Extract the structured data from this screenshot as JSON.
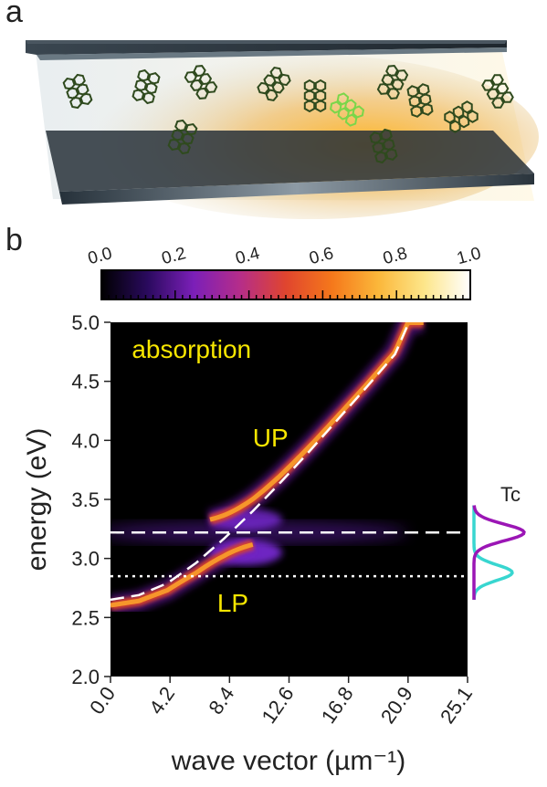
{
  "panels": {
    "a": "a",
    "b": "b"
  },
  "colorbar": {
    "ticks": [
      "0.0",
      "0.2",
      "0.4",
      "0.6",
      "0.8",
      "1.0"
    ],
    "range": [
      0,
      1
    ],
    "colormap": [
      "#000000",
      "#2a0a5e",
      "#7b1fb8",
      "#b52d8a",
      "#e0452e",
      "#f5781b",
      "#fbb73a",
      "#fde68a",
      "#ffffff"
    ]
  },
  "chart_data": {
    "type": "heatmap",
    "title": "",
    "xlabel": "wave vector (µm⁻¹)",
    "ylabel": "energy (eV)",
    "xlim": [
      0,
      25.1
    ],
    "ylim": [
      2.0,
      5.0
    ],
    "xticks": [
      "0.0",
      "4.2",
      "8.4",
      "12.6",
      "16.8",
      "20.9",
      "25.1"
    ],
    "yticks": [
      "2.0",
      "2.5",
      "3.0",
      "3.5",
      "4.0",
      "4.5",
      "5.0"
    ],
    "annotations": [
      {
        "text": "absorption",
        "x": 1.5,
        "y": 4.7
      },
      {
        "text": "UP",
        "x": 10.0,
        "y": 3.95
      },
      {
        "text": "LP",
        "x": 7.5,
        "y": 2.55
      }
    ],
    "series": [
      {
        "style": "dashed",
        "x": [
          0.0,
          2.0,
          4.0,
          6.0,
          8.0,
          10.0,
          12.0,
          14.0,
          16.0,
          18.0,
          20.0,
          20.9
        ],
        "values": [
          2.65,
          2.69,
          2.79,
          2.96,
          3.17,
          3.4,
          3.65,
          3.91,
          4.18,
          4.45,
          4.73,
          4.98
        ]
      },
      {
        "style": "dashed",
        "x": [
          0.0,
          25.1
        ],
        "values": [
          3.22,
          3.22
        ]
      },
      {
        "style": "dotted",
        "x": [
          0.0,
          25.1
        ],
        "values": [
          2.85,
          2.85
        ]
      }
    ],
    "side_spectrum": {
      "label": "Tc",
      "peaks_ev": [
        3.22,
        2.88
      ]
    }
  }
}
